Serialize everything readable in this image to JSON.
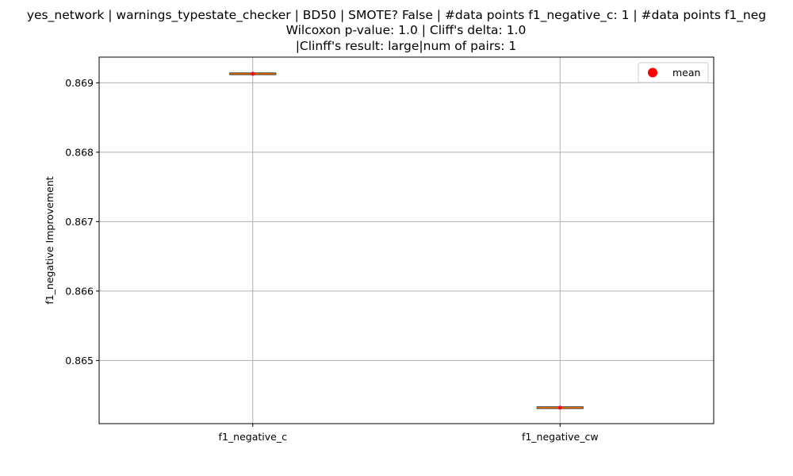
{
  "chart_data": {
    "type": "box",
    "title_lines": [
      "yes_network | warnings_typestate_checker | BD50 | SMOTE? False | #data points f1_negative_c: 1 | #data points f1_neg",
      "Wilcoxon p-value: 1.0 | Cliff's delta: 1.0",
      "|Clinff's result: large|num of pairs: 1"
    ],
    "xlabel": "",
    "ylabel": "f1_negative Improvement",
    "categories": [
      "f1_negative_c",
      "f1_negative_cw"
    ],
    "values": [
      0.86913,
      0.86432
    ],
    "means": [
      0.86913,
      0.86432
    ],
    "ylim": [
      0.86409,
      0.86937
    ],
    "yticks": [
      0.865,
      0.866,
      0.867,
      0.868,
      0.869
    ],
    "ytick_labels": [
      "0.865",
      "0.866",
      "0.867",
      "0.868",
      "0.869"
    ],
    "grid": true,
    "legend": {
      "placement": "top-right",
      "entries": [
        {
          "label": "mean",
          "marker": "circle",
          "color": "#ff0000"
        }
      ]
    },
    "colors": {
      "median": "#ff7f0e",
      "box": "#000000",
      "mean": "#ff0000",
      "grid": "#b0b0b0"
    }
  }
}
